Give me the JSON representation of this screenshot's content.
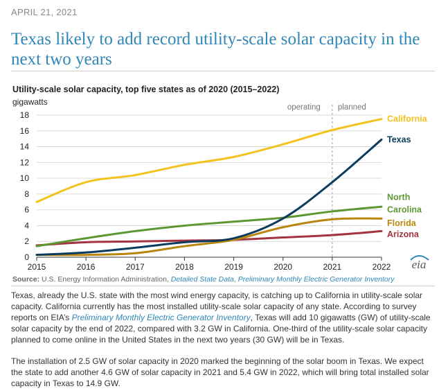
{
  "article": {
    "date": "APRIL 21, 2021",
    "title": "Texas likely to add record utility-scale solar capacity in the next two years"
  },
  "chart_data": {
    "type": "line",
    "title": "Utility-scale solar capacity, top five states as of 2020 (2015–2022)",
    "ylabel": "gigawatts",
    "xlabel": "",
    "x": [
      2015,
      2016,
      2017,
      2018,
      2019,
      2020,
      2021,
      2022
    ],
    "ylim": [
      0,
      18
    ],
    "yticks": [
      0,
      2,
      4,
      6,
      8,
      10,
      12,
      14,
      16,
      18
    ],
    "grid": true,
    "annotations": {
      "divider_year": 2021,
      "left_label": "operating",
      "right_label": "planned"
    },
    "series": [
      {
        "name": "California",
        "label_lines": [
          "California"
        ],
        "color": "#f2c31e",
        "values": [
          7.0,
          9.5,
          10.4,
          11.7,
          12.7,
          14.3,
          16.1,
          17.5
        ]
      },
      {
        "name": "Texas",
        "label_lines": [
          "Texas"
        ],
        "color": "#0b3c5d",
        "values": [
          0.3,
          0.6,
          1.2,
          1.9,
          2.4,
          4.9,
          9.5,
          14.9
        ]
      },
      {
        "name": "North Carolina",
        "label_lines": [
          "North",
          "Carolina"
        ],
        "color": "#5d9732",
        "values": [
          1.4,
          2.4,
          3.3,
          4.0,
          4.5,
          5.0,
          5.8,
          6.4
        ]
      },
      {
        "name": "Florida",
        "label_lines": [
          "Florida"
        ],
        "color": "#b8860b",
        "values": [
          0.3,
          0.3,
          0.5,
          1.4,
          2.2,
          3.8,
          4.8,
          4.9
        ]
      },
      {
        "name": "Arizona",
        "label_lines": [
          "Arizona"
        ],
        "color": "#a33340",
        "values": [
          1.5,
          1.9,
          2.0,
          2.1,
          2.2,
          2.5,
          2.8,
          3.3
        ]
      }
    ]
  },
  "source": {
    "label": "Source:",
    "text": "U.S. Energy Information Administration,",
    "link1": "Detailed State Data",
    "sep": ",",
    "link2": "Preliminary Monthly Electric Generator Inventory"
  },
  "logo_text": "eia",
  "body": {
    "para1_a": "Texas, already the U.S. state with the most wind energy capacity, is catching up to California in utility-scale solar capacity. California currently has the most installed utility-scale solar capacity of any state. According to survey reports on EIA’s ",
    "para1_link": "Preliminary Monthly Electric Generator Inventory",
    "para1_b": ", Texas will add 10 gigawatts (GW) of utility-scale solar capacity by the end of 2022, compared with 3.2 GW in California. One-third of the utility-scale solar capacity planned to come online in the United States in the next two years (30 GW) will be in Texas.",
    "para2": "The installation of 2.5 GW of solar capacity in 2020 marked the beginning of the solar boom in Texas. We expect the state to add another 4.6 GW of solar capacity in 2021 and 5.4 GW in 2022, which will bring total installed solar capacity in Texas to 14.9 GW."
  }
}
